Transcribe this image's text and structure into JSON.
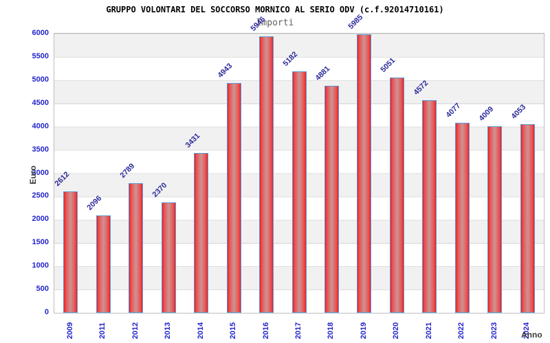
{
  "header": {
    "title": "GRUPPO VOLONTARI DEL SOCCORSO MORNICO AL SERIO ODV (c.f.92014710161)",
    "subtitle": "Importi"
  },
  "axes": {
    "x_title": "Anno",
    "y_title": "Euro"
  },
  "chart_data": {
    "type": "bar",
    "title": "GRUPPO VOLONTARI DEL SOCCORSO MORNICO AL SERIO ODV (c.f.92014710161)",
    "subtitle": "Importi",
    "xlabel": "Anno",
    "ylabel": "Euro",
    "categories": [
      "2009",
      "2011",
      "2012",
      "2013",
      "2014",
      "2015",
      "2016",
      "2017",
      "2018",
      "2019",
      "2020",
      "2021",
      "2022",
      "2023",
      "2024"
    ],
    "values": [
      2612,
      2096,
      2789,
      2370,
      3431,
      4943,
      5946,
      5182,
      4881,
      5985,
      5051,
      4572,
      4077,
      4009,
      4053
    ],
    "ylim": [
      0,
      6000
    ],
    "ytick_step": 500,
    "yticks": [
      0,
      500,
      1000,
      1500,
      2000,
      2500,
      3000,
      3500,
      4000,
      4500,
      5000,
      5500,
      6000
    ],
    "grid": "alternating horizontal bands every 500, light gray / white",
    "legend": "none",
    "value_labels": "above bars, rotated 45deg, navy blue"
  },
  "colors": {
    "bar_edge": "#e41e24",
    "bar_center": "#cf8e8e",
    "bar_border": "#5b9bd5",
    "tick_label": "#2323cc",
    "value_label": "#2a2a9b",
    "band_gray": "#f1f1f1",
    "plot_border": "#bdbdbd",
    "title": "#000000",
    "subtitle": "#5f5f5f",
    "axis_title": "#3a3a3a"
  }
}
